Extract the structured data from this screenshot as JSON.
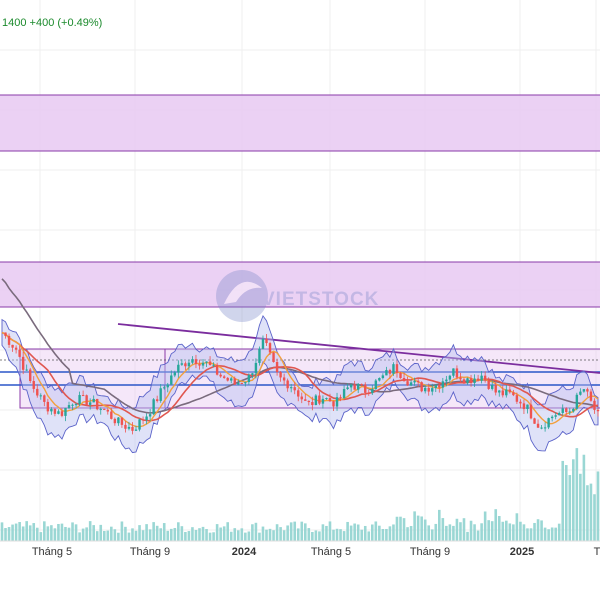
{
  "header": {
    "price_fragment": "1400",
    "change_text": "+400 (+0.49%)"
  },
  "watermark": {
    "text": "VIETSTOCK"
  },
  "colors": {
    "up": "#26a69a",
    "down": "#ef5350",
    "zone_fill": "#e8c9f2",
    "zone_stroke": "#8a3aa8",
    "trendline": "#7b2d9e",
    "band_fill": "#b7bff0",
    "band_stroke": "#5b63c9",
    "sma_long": "#7a6b7d",
    "ema_mid": "#e0574f",
    "ema_fast": "#f2a03d",
    "support_blue": "#2b56c8",
    "volume": "#8fd3cf",
    "grid": "#efefef",
    "header_green": "#1b8a2c"
  },
  "chart_data": {
    "type": "candlestick",
    "title": "",
    "x_tick_labels": [
      "Tháng 5",
      "Tháng 9",
      "2024",
      "Tháng 5",
      "Tháng 9",
      "2025",
      "T"
    ],
    "grid": true,
    "legend": "none",
    "indicators": [
      "bollinger-bands",
      "moving-average-long",
      "ema-mid",
      "ema-fast",
      "volume"
    ],
    "zones": [
      {
        "name": "upper-zone",
        "y_top_frac": 0.0,
        "y_bottom_frac": 0.0
      },
      {
        "name": "middle-zone"
      },
      {
        "name": "lower-zone"
      }
    ],
    "price_path": [
      0.64,
      0.56,
      0.4,
      0.3,
      0.26,
      0.33,
      0.32,
      0.28,
      0.22,
      0.19,
      0.26,
      0.37,
      0.47,
      0.52,
      0.5,
      0.44,
      0.4,
      0.43,
      0.6,
      0.43,
      0.39,
      0.3,
      0.34,
      0.31,
      0.4,
      0.37,
      0.42,
      0.48,
      0.41,
      0.38,
      0.4,
      0.46,
      0.42,
      0.44,
      0.36,
      0.35,
      0.3,
      0.2,
      0.26,
      0.27,
      0.38,
      0.25
    ]
  }
}
